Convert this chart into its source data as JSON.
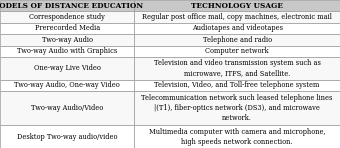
{
  "col1_header": "MODELS OF DISTANCE EDUCATION",
  "col2_header": "TECHNOLOGY USAGE",
  "rows": [
    [
      "Correspondence study",
      "Regular post office mail, copy machines, electronic mail"
    ],
    [
      "Prerecorded Media",
      "Audiotapes and videotapes"
    ],
    [
      "Two-way Audio",
      "Telephone and radio"
    ],
    [
      "Two-way Audio with Graphics",
      "Computer network"
    ],
    [
      "One-way Live Video",
      "Television and video transmission system such as\nmicrowave, ITFS, and Satellite."
    ],
    [
      "Two-way Audio, One-way Video",
      "Television, Video, and Toll-free telephone system"
    ],
    [
      "Two-way Audio/Video",
      "Telecommunication network such leased telephone lines\n|(T1), fiber-optics network (DS3), and microwave\nnetwork."
    ],
    [
      "Desktop Two-way audio/video",
      "Multimedia computer with camera and microphone,\nhigh speeds network connection."
    ]
  ],
  "header_bg": "#c8c8c8",
  "border_color": "#999999",
  "header_fontsize": 5.3,
  "cell_fontsize": 4.8,
  "col_split": 0.395,
  "fig_width": 3.4,
  "fig_height": 1.48,
  "dpi": 100,
  "line_heights": [
    1,
    1,
    1,
    1,
    2,
    1,
    3,
    2
  ]
}
